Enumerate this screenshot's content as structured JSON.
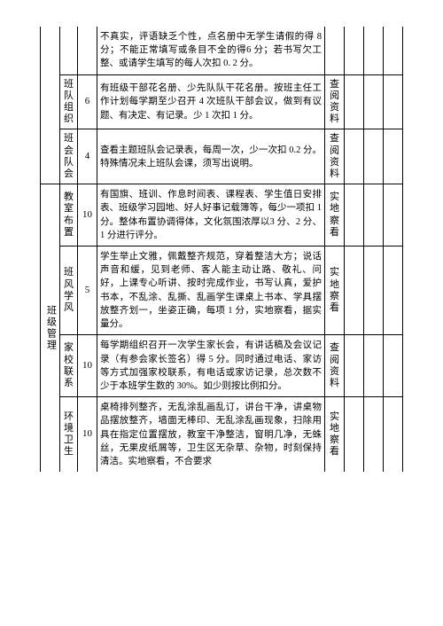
{
  "category_main": "班级管理",
  "rows": [
    {
      "sub": "",
      "score": "",
      "desc": "不真实，评语缺乏个性，点名册中无学生请假的得 8 分；不能正常填写或条目不全的得6 分；若书写欠工整、或请学生填写的每人次扣 0. 2 分。",
      "check": ""
    },
    {
      "sub": "班队组织",
      "score": "6",
      "desc": "有班级干部花名册、少先队队干花名册。按班主任工作计划每学期至少召开 4 次班队干部会议，做到有议题、有决定、有记录。少 1 次扣 1 分。",
      "check": "查阅资料"
    },
    {
      "sub": "班会队会",
      "score": "4",
      "desc": "查看主题班队会记录表，每周一次，少一次扣 0.2 分。特殊情况未上班队会课，须写出说明。",
      "check": "查阅资料"
    },
    {
      "sub": "教室布置",
      "score": "10",
      "desc": "有国旗、班训、作息时间表、课程表、学生值日安排表、班级学习园地、好人好事记载簿等，每少一项扣 1 分。整体布置协调得体，文化氛围浓厚以3 分、2 分、1 分进行评分。",
      "check": "实地察看"
    },
    {
      "sub": "班风学风",
      "score": "5",
      "desc": "学生举止文雅，佩戴整齐规范，穿着整洁大方；说话声音和缓，见到老师、客人能主动让路、敬礼、问好，上课专心听讲、按时完成作业，书写认真，爱护书本，不乱涂、乱撕、乱画学生课桌上书本、学具摆放整齐划一，坐姿正确，每项 1 分，实地察看，据实量分。",
      "check": "实地察看"
    },
    {
      "sub": "家校联系",
      "score": "10",
      "desc": "每学期组织召开一次学生家长会，有讲话稿及会议记录（有参会家长签名）得 5 分。同时通过电话、家访等方式加强家校联系，有电话或家访记录，总次数不少于本班学生数的 30%。如少则按比例扣分。",
      "check": "查阅资料"
    },
    {
      "sub": "环境卫生",
      "score": "10",
      "desc": "桌椅排列整齐，无乱涂乱画乱订，讲台干净，讲桌物品摆放整齐，墙面无棒印、无乱涂乱画现象，扫除用具在指定位置摆放，教室干净整洁，窗明几净，无蛛丝，无果皮纸屑等，卫生区无杂草、杂物，时刻保持清洁。实地察看，不合要求",
      "check": "实地察看"
    }
  ]
}
